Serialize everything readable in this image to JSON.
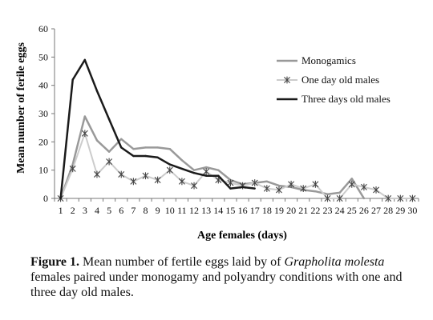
{
  "chart_data": {
    "type": "line",
    "xlabel": "Age females (days)",
    "ylabel": "Mean number of ferile eggs",
    "ylim": [
      0,
      60
    ],
    "yticks": [
      0,
      10,
      20,
      30,
      40,
      50,
      60
    ],
    "x": [
      1,
      2,
      3,
      4,
      5,
      6,
      7,
      8,
      9,
      10,
      11,
      12,
      13,
      14,
      15,
      16,
      17,
      18,
      19,
      20,
      21,
      22,
      23,
      24,
      25,
      26,
      27,
      28,
      29,
      30
    ],
    "legend_position": "top-right",
    "series": [
      {
        "name": "Monogamics",
        "color": "#999999",
        "style": "line",
        "values": [
          0,
          12,
          29,
          20.5,
          16.5,
          21,
          17.5,
          18,
          18,
          17.5,
          13.5,
          10,
          11,
          10,
          6.5,
          5,
          5.5,
          6,
          4.5,
          4,
          3,
          2.5,
          1.5,
          2,
          7,
          0,
          null,
          null,
          null,
          null
        ]
      },
      {
        "name": "One day old males",
        "color": "#cccccc",
        "style": "line-star",
        "values": [
          0,
          10.5,
          23,
          8.5,
          13,
          8.5,
          6,
          8,
          6.5,
          10,
          6,
          4.5,
          9.5,
          6.5,
          5.5,
          4.5,
          5.5,
          3.5,
          3,
          5,
          3.5,
          5,
          0,
          0,
          5,
          4,
          3,
          0,
          0,
          0
        ]
      },
      {
        "name": "Three days old males",
        "color": "#1a1a1a",
        "style": "line",
        "values": [
          0,
          42,
          49,
          38,
          28,
          18,
          15,
          15,
          14.5,
          12,
          10.5,
          9,
          8,
          8,
          3.5,
          4,
          3.5,
          null,
          null,
          null,
          null,
          null,
          null,
          null,
          null,
          null,
          null,
          null,
          null,
          null
        ]
      }
    ]
  },
  "caption": {
    "label": "Figure 1.",
    "text_before_species": " Mean number of fertile eggs laid by of ",
    "species": "Grapholita molesta",
    "text_after_species": " females paired under monogamy and polyandry conditions with one and three day old males."
  }
}
